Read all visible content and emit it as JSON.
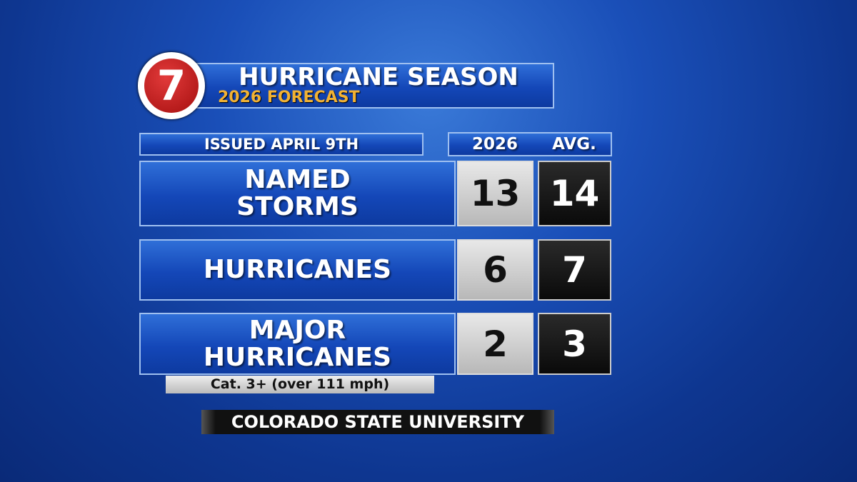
{
  "header": {
    "logo": "7",
    "title": "HURRICANE SEASON",
    "subtitle": "2026 FORECAST"
  },
  "issued": "ISSUED APRIL 9TH",
  "table": {
    "columns": [
      "2026",
      "AVG."
    ],
    "rows": [
      {
        "label": [
          "NAMED",
          "STORMS"
        ],
        "values": [
          13,
          14
        ]
      },
      {
        "label": [
          "HURRICANES"
        ],
        "values": [
          6,
          7
        ]
      },
      {
        "label": [
          "MAJOR",
          "HURRICANES"
        ],
        "values": [
          2,
          3
        ]
      }
    ]
  },
  "note": "Cat. 3+ (over 111 mph)",
  "source": "COLORADO STATE UNIVERSITY"
}
